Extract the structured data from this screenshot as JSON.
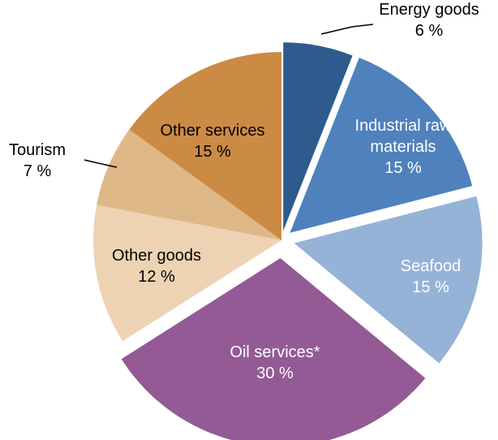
{
  "chart_data": {
    "type": "pie",
    "title": "",
    "start_angle_deg": 0,
    "direction": "clockwise",
    "slices": [
      {
        "name": "Energy goods",
        "value": 6,
        "label_line1": "Energy goods",
        "label_line2": "6 %",
        "color": "#2E5A8E",
        "label_color": "#000000",
        "exploded": true,
        "label_outside": true
      },
      {
        "name": "Industrial raw materials",
        "value": 15,
        "label_line1": "Industrial raw",
        "label_line2": "materials",
        "label_line3": "15 %",
        "color": "#4F81BD",
        "label_color": "#ffffff",
        "exploded": true
      },
      {
        "name": "Seafood",
        "value": 15,
        "label_line1": "Seafood",
        "label_line2": "15 %",
        "color": "#95B3D7",
        "label_color": "#ffffff",
        "exploded": true
      },
      {
        "name": "Oil services*",
        "value": 30,
        "label_line1": "Oil services*",
        "label_line2": "30 %",
        "color": "#935A95",
        "label_color": "#ffffff",
        "exploded": true
      },
      {
        "name": "Other goods",
        "value": 12,
        "label_line1": "Other goods",
        "label_line2": "12 %",
        "color": "#EDD3B3",
        "label_color": "#000000",
        "exploded": false
      },
      {
        "name": "Tourism",
        "value": 7,
        "label_line1": "Tourism",
        "label_line2": "7 %",
        "color": "#DFB888",
        "label_color": "#000000",
        "exploded": false,
        "label_outside": true
      },
      {
        "name": "Other services",
        "value": 15,
        "label_line1": "Other services",
        "label_line2": "15 %",
        "color": "#CC8B45",
        "label_color": "#000000",
        "exploded": false
      }
    ]
  }
}
